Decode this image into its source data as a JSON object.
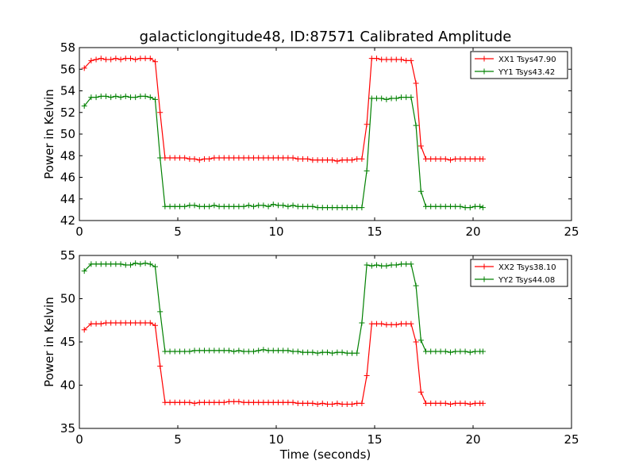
{
  "title": "galacticlongitude48, ID:87571 Calibrated Amplitude",
  "xlabel": "Time (seconds)",
  "colors": {
    "xx": "#ff0000",
    "yy": "#008000"
  },
  "chart_data": [
    {
      "type": "line",
      "title": "galacticlongitude48, ID:87571 Calibrated Amplitude",
      "xlabel": "",
      "ylabel": "Power in Kelvin",
      "xlim": [
        0,
        25
      ],
      "ylim": [
        42,
        58
      ],
      "xticks": [
        0,
        5,
        10,
        15,
        20,
        25
      ],
      "yticks": [
        42,
        44,
        46,
        48,
        50,
        52,
        54,
        56,
        58
      ],
      "grid": false,
      "legend_position": "top-right",
      "x": [
        0.25,
        0.6,
        0.85,
        1.1,
        1.35,
        1.6,
        1.85,
        2.1,
        2.35,
        2.6,
        2.85,
        3.1,
        3.35,
        3.6,
        3.85,
        4.1,
        4.35,
        4.6,
        4.85,
        5.1,
        5.35,
        5.6,
        5.85,
        6.1,
        6.35,
        6.6,
        6.85,
        7.1,
        7.35,
        7.6,
        7.85,
        8.1,
        8.35,
        8.6,
        8.85,
        9.1,
        9.35,
        9.6,
        9.85,
        10.1,
        10.35,
        10.6,
        10.85,
        11.1,
        11.35,
        11.6,
        11.85,
        12.1,
        12.35,
        12.6,
        12.85,
        13.1,
        13.35,
        13.6,
        13.85,
        14.1,
        14.35,
        14.6,
        14.85,
        15.1,
        15.35,
        15.6,
        15.85,
        16.1,
        16.35,
        16.6,
        16.85,
        17.1,
        17.35,
        17.6,
        17.85,
        18.1,
        18.35,
        18.6,
        18.85,
        19.1,
        19.35,
        19.6,
        19.85,
        20.1,
        20.35,
        20.5
      ],
      "series": [
        {
          "name": "XX1 Tsys47.90",
          "color": "#ff0000",
          "values": [
            56.1,
            56.8,
            56.9,
            57.0,
            56.9,
            56.9,
            57.0,
            56.9,
            57.0,
            57.0,
            56.9,
            57.0,
            57.0,
            57.0,
            56.7,
            52.0,
            47.8,
            47.8,
            47.8,
            47.8,
            47.8,
            47.7,
            47.7,
            47.6,
            47.7,
            47.7,
            47.8,
            47.8,
            47.8,
            47.8,
            47.8,
            47.8,
            47.8,
            47.8,
            47.8,
            47.8,
            47.8,
            47.8,
            47.8,
            47.8,
            47.8,
            47.8,
            47.8,
            47.7,
            47.7,
            47.7,
            47.6,
            47.6,
            47.6,
            47.6,
            47.6,
            47.5,
            47.6,
            47.6,
            47.6,
            47.7,
            47.7,
            50.9,
            57.0,
            57.0,
            56.9,
            56.9,
            56.9,
            56.9,
            56.9,
            56.8,
            56.8,
            54.7,
            48.9,
            47.7,
            47.7,
            47.7,
            47.7,
            47.7,
            47.6,
            47.7,
            47.7,
            47.7,
            47.7,
            47.7,
            47.7,
            47.7
          ]
        },
        {
          "name": "YY1 Tsys43.42",
          "color": "#008000",
          "values": [
            52.6,
            53.4,
            53.4,
            53.5,
            53.5,
            53.4,
            53.5,
            53.4,
            53.5,
            53.4,
            53.4,
            53.5,
            53.5,
            53.4,
            53.2,
            47.8,
            43.3,
            43.3,
            43.3,
            43.3,
            43.3,
            43.4,
            43.4,
            43.3,
            43.3,
            43.3,
            43.4,
            43.3,
            43.3,
            43.3,
            43.3,
            43.3,
            43.3,
            43.4,
            43.3,
            43.4,
            43.4,
            43.3,
            43.5,
            43.4,
            43.4,
            43.3,
            43.4,
            43.3,
            43.3,
            43.3,
            43.3,
            43.2,
            43.2,
            43.2,
            43.2,
            43.2,
            43.2,
            43.2,
            43.2,
            43.2,
            43.2,
            46.6,
            53.3,
            53.3,
            53.3,
            53.2,
            53.3,
            53.3,
            53.4,
            53.4,
            53.4,
            50.8,
            44.7,
            43.3,
            43.3,
            43.3,
            43.3,
            43.3,
            43.3,
            43.3,
            43.3,
            43.2,
            43.2,
            43.3,
            43.3,
            43.2
          ]
        }
      ]
    },
    {
      "type": "line",
      "title": "",
      "xlabel": "Time (seconds)",
      "ylabel": "Power in Kelvin",
      "xlim": [
        0,
        25
      ],
      "ylim": [
        35,
        55
      ],
      "xticks": [
        0,
        5,
        10,
        15,
        20,
        25
      ],
      "yticks": [
        35,
        40,
        45,
        50,
        55
      ],
      "grid": false,
      "legend_position": "top-right",
      "x": [
        0.25,
        0.6,
        0.85,
        1.1,
        1.35,
        1.6,
        1.85,
        2.1,
        2.35,
        2.6,
        2.85,
        3.1,
        3.35,
        3.6,
        3.85,
        4.1,
        4.35,
        4.6,
        4.85,
        5.1,
        5.35,
        5.6,
        5.85,
        6.1,
        6.35,
        6.6,
        6.85,
        7.1,
        7.35,
        7.6,
        7.85,
        8.1,
        8.35,
        8.6,
        8.85,
        9.1,
        9.35,
        9.6,
        9.85,
        10.1,
        10.35,
        10.6,
        10.85,
        11.1,
        11.35,
        11.6,
        11.85,
        12.1,
        12.35,
        12.6,
        12.85,
        13.1,
        13.35,
        13.6,
        13.85,
        14.1,
        14.35,
        14.6,
        14.85,
        15.1,
        15.35,
        15.6,
        15.85,
        16.1,
        16.35,
        16.6,
        16.85,
        17.1,
        17.35,
        17.6,
        17.85,
        18.1,
        18.35,
        18.6,
        18.85,
        19.1,
        19.35,
        19.6,
        19.85,
        20.1,
        20.35,
        20.5
      ],
      "series": [
        {
          "name": "XX2 Tsys38.10",
          "color": "#ff0000",
          "values": [
            46.4,
            47.1,
            47.1,
            47.1,
            47.2,
            47.2,
            47.2,
            47.2,
            47.2,
            47.2,
            47.2,
            47.2,
            47.2,
            47.2,
            46.9,
            42.2,
            38.0,
            38.0,
            38.0,
            38.0,
            38.0,
            38.0,
            37.9,
            38.0,
            38.0,
            38.0,
            38.0,
            38.0,
            38.0,
            38.1,
            38.1,
            38.1,
            38.0,
            38.0,
            38.0,
            38.0,
            38.0,
            38.0,
            38.0,
            38.0,
            38.0,
            38.0,
            38.0,
            37.9,
            37.9,
            37.9,
            37.9,
            37.8,
            37.9,
            37.8,
            37.8,
            37.9,
            37.8,
            37.8,
            37.8,
            37.9,
            37.9,
            41.1,
            47.1,
            47.1,
            47.1,
            47.0,
            47.0,
            47.0,
            47.1,
            47.1,
            47.1,
            45.0,
            39.2,
            37.9,
            37.9,
            37.9,
            37.9,
            37.9,
            37.8,
            37.9,
            37.9,
            37.9,
            37.8,
            37.9,
            37.9,
            37.9
          ]
        },
        {
          "name": "YY2 Tsys44.08",
          "color": "#008000",
          "values": [
            53.2,
            54.0,
            54.0,
            54.0,
            54.0,
            54.0,
            54.0,
            54.0,
            53.9,
            53.9,
            54.1,
            54.0,
            54.1,
            54.0,
            53.7,
            48.5,
            43.9,
            43.9,
            43.9,
            43.9,
            43.9,
            43.9,
            44.0,
            44.0,
            44.0,
            44.0,
            44.0,
            44.0,
            44.0,
            44.0,
            43.9,
            44.0,
            43.9,
            43.9,
            43.9,
            44.0,
            44.1,
            44.0,
            44.0,
            44.0,
            44.0,
            44.0,
            43.9,
            43.9,
            43.8,
            43.8,
            43.8,
            43.7,
            43.8,
            43.8,
            43.7,
            43.8,
            43.8,
            43.7,
            43.7,
            43.7,
            47.2,
            53.9,
            53.8,
            53.9,
            53.8,
            53.8,
            53.9,
            53.9,
            54.0,
            54.0,
            54.0,
            51.5,
            45.2,
            43.9,
            43.9,
            43.9,
            43.9,
            43.9,
            43.8,
            43.9,
            43.9,
            43.9,
            43.8,
            43.9,
            43.9,
            43.9
          ]
        }
      ]
    }
  ]
}
